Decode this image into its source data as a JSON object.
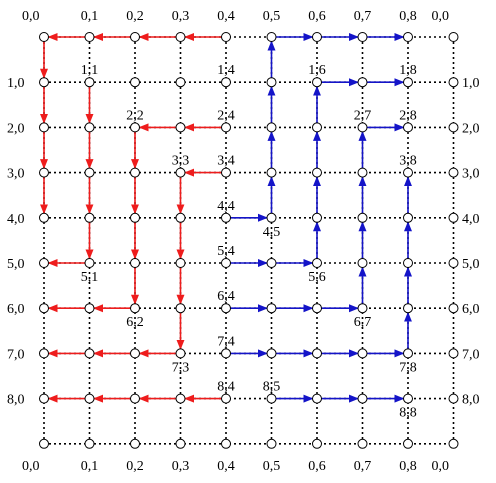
{
  "colors": {
    "red": "#ee1c1c",
    "blue": "#1414c8",
    "grid": "#000000",
    "node_fill": "#ffffff"
  },
  "grid": {
    "rows": 10,
    "cols": 10
  },
  "labels": {
    "top": [
      "0,0",
      "0,1",
      "0,2",
      "0,3",
      "0,4",
      "0,5",
      "0,6",
      "0,7",
      "0,8",
      "0,0"
    ],
    "bottom": [
      "0,0",
      "0,1",
      "0,2",
      "0,3",
      "0,4",
      "0,5",
      "0,6",
      "0,7",
      "0,8",
      "0,0"
    ],
    "left": [
      "1,0",
      "2,0",
      "3,0",
      "4,0",
      "5,0",
      "6,0",
      "7,0",
      "8,0"
    ],
    "right": [
      "1,0",
      "2,0",
      "3,0",
      "4,0",
      "5,0",
      "6,0",
      "7,0",
      "8,0"
    ],
    "interior": [
      {
        "text": "1,1",
        "r": 1,
        "c": 1,
        "pos": "above"
      },
      {
        "text": "1,4",
        "r": 1,
        "c": 4,
        "pos": "above"
      },
      {
        "text": "1,6",
        "r": 1,
        "c": 6,
        "pos": "above"
      },
      {
        "text": "1,8",
        "r": 1,
        "c": 8,
        "pos": "above"
      },
      {
        "text": "2,2",
        "r": 2,
        "c": 2,
        "pos": "above"
      },
      {
        "text": "2,4",
        "r": 2,
        "c": 4,
        "pos": "above"
      },
      {
        "text": "2,7",
        "r": 2,
        "c": 7,
        "pos": "above"
      },
      {
        "text": "2,8",
        "r": 2,
        "c": 8,
        "pos": "above"
      },
      {
        "text": "3,3",
        "r": 3,
        "c": 3,
        "pos": "above"
      },
      {
        "text": "3,4",
        "r": 3,
        "c": 4,
        "pos": "above"
      },
      {
        "text": "3,8",
        "r": 3,
        "c": 8,
        "pos": "above"
      },
      {
        "text": "4,4",
        "r": 4,
        "c": 4,
        "pos": "above"
      },
      {
        "text": "4,5",
        "r": 4,
        "c": 5,
        "pos": "below"
      },
      {
        "text": "5,4",
        "r": 5,
        "c": 4,
        "pos": "above"
      },
      {
        "text": "5,1",
        "r": 5,
        "c": 1,
        "pos": "below"
      },
      {
        "text": "5,6",
        "r": 5,
        "c": 6,
        "pos": "below"
      },
      {
        "text": "6,4",
        "r": 6,
        "c": 4,
        "pos": "above"
      },
      {
        "text": "6,2",
        "r": 6,
        "c": 2,
        "pos": "below"
      },
      {
        "text": "6,7",
        "r": 6,
        "c": 7,
        "pos": "below"
      },
      {
        "text": "7,4",
        "r": 7,
        "c": 4,
        "pos": "above"
      },
      {
        "text": "7,3",
        "r": 7,
        "c": 3,
        "pos": "below"
      },
      {
        "text": "7,8",
        "r": 7,
        "c": 8,
        "pos": "below"
      },
      {
        "text": "8,4",
        "r": 8,
        "c": 4,
        "pos": "above"
      },
      {
        "text": "8,5",
        "r": 8,
        "c": 5,
        "pos": "above"
      },
      {
        "text": "8,8",
        "r": 8,
        "c": 8,
        "pos": "below"
      }
    ]
  },
  "arrows": {
    "red": [
      [
        0,
        4,
        0,
        3
      ],
      [
        0,
        3,
        0,
        2
      ],
      [
        0,
        2,
        0,
        1
      ],
      [
        0,
        1,
        0,
        0
      ],
      [
        0,
        0,
        1,
        0
      ],
      [
        1,
        0,
        2,
        0
      ],
      [
        2,
        0,
        3,
        0
      ],
      [
        3,
        0,
        4,
        0
      ],
      [
        1,
        1,
        2,
        1
      ],
      [
        2,
        1,
        3,
        1
      ],
      [
        3,
        1,
        4,
        1
      ],
      [
        4,
        1,
        5,
        1
      ],
      [
        5,
        1,
        5,
        0
      ],
      [
        2,
        4,
        2,
        3
      ],
      [
        2,
        3,
        2,
        2
      ],
      [
        2,
        2,
        3,
        2
      ],
      [
        3,
        2,
        4,
        2
      ],
      [
        4,
        2,
        5,
        2
      ],
      [
        5,
        2,
        6,
        2
      ],
      [
        6,
        2,
        6,
        1
      ],
      [
        6,
        1,
        6,
        0
      ],
      [
        3,
        4,
        3,
        3
      ],
      [
        3,
        3,
        4,
        3
      ],
      [
        4,
        3,
        5,
        3
      ],
      [
        5,
        3,
        6,
        3
      ],
      [
        6,
        3,
        7,
        3
      ],
      [
        7,
        3,
        7,
        2
      ],
      [
        7,
        2,
        7,
        1
      ],
      [
        7,
        1,
        7,
        0
      ],
      [
        8,
        4,
        8,
        3
      ],
      [
        8,
        3,
        8,
        2
      ],
      [
        8,
        2,
        8,
        1
      ],
      [
        8,
        1,
        8,
        0
      ]
    ],
    "blue": [
      [
        0,
        5,
        0,
        6
      ],
      [
        0,
        6,
        0,
        7
      ],
      [
        0,
        7,
        0,
        8
      ],
      [
        4,
        5,
        3,
        5
      ],
      [
        3,
        5,
        2,
        5
      ],
      [
        2,
        5,
        1,
        5
      ],
      [
        1,
        5,
        0,
        5
      ],
      [
        4,
        4,
        4,
        5
      ],
      [
        5,
        4,
        5,
        5
      ],
      [
        5,
        5,
        5,
        6
      ],
      [
        5,
        6,
        4,
        6
      ],
      [
        4,
        6,
        3,
        6
      ],
      [
        3,
        6,
        2,
        6
      ],
      [
        2,
        6,
        1,
        6
      ],
      [
        1,
        6,
        1,
        7
      ],
      [
        1,
        7,
        1,
        8
      ],
      [
        6,
        4,
        6,
        5
      ],
      [
        6,
        5,
        6,
        6
      ],
      [
        6,
        6,
        6,
        7
      ],
      [
        6,
        7,
        5,
        7
      ],
      [
        5,
        7,
        4,
        7
      ],
      [
        4,
        7,
        3,
        7
      ],
      [
        3,
        7,
        2,
        7
      ],
      [
        2,
        7,
        2,
        8
      ],
      [
        7,
        4,
        7,
        5
      ],
      [
        7,
        5,
        7,
        6
      ],
      [
        7,
        6,
        7,
        7
      ],
      [
        7,
        7,
        7,
        8
      ],
      [
        7,
        8,
        6,
        8
      ],
      [
        6,
        8,
        5,
        8
      ],
      [
        5,
        8,
        4,
        8
      ],
      [
        4,
        8,
        3,
        8
      ],
      [
        8,
        5,
        8,
        6
      ],
      [
        8,
        6,
        8,
        7
      ],
      [
        8,
        7,
        8,
        8
      ]
    ]
  }
}
